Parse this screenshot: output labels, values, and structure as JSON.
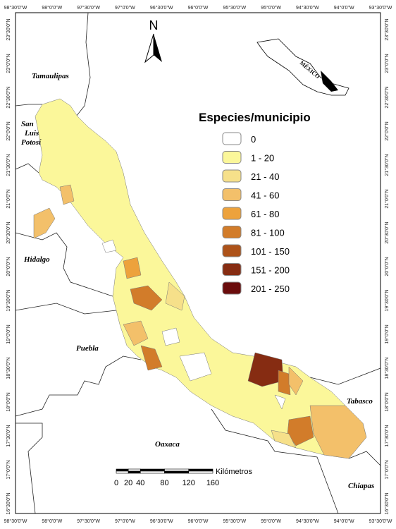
{
  "north_label": "N",
  "inset_label": "MÉXICO",
  "top_lon_labels": [
    "98°30'0\"W",
    "98°0'0\"W",
    "97°30'0\"W",
    "97°0'0\"W",
    "96°30'0\"W",
    "96°0'0\"W",
    "95°30'0\"W",
    "95°0'0\"W",
    "94°30'0\"W",
    "94°0'0\"W",
    "93°30'0\"W"
  ],
  "bottom_lon_labels": [
    "98°30'0\"W",
    "98°0'0\"W",
    "97°30'0\"W",
    "97°0'0\"W",
    "96°30'0\"W",
    "96°0'0\"W",
    "95°30'0\"W",
    "95°0'0\"W",
    "94°30'0\"W",
    "94°0'0\"W",
    "93°30'0\"W"
  ],
  "left_lat_labels": [
    "23°30'0\"N",
    "23°0'0\"N",
    "22°30'0\"N",
    "22°0'0\"N",
    "21°30'0\"N",
    "21°0'0\"N",
    "20°30'0\"N",
    "20°0'0\"N",
    "19°30'0\"N",
    "19°0'0\"N",
    "18°30'0\"N",
    "18°0'0\"N",
    "17°30'0\"N",
    "17°0'0\"N",
    "16°30'0\"N"
  ],
  "right_lat_labels": [
    "23°30'0\"N",
    "23°0'0\"N",
    "22°30'0\"N",
    "22°0'0\"N",
    "21°30'0\"N",
    "21°0'0\"N",
    "20°30'0\"N",
    "20°0'0\"N",
    "19°30'0\"N",
    "19°0'0\"N",
    "18°30'0\"N",
    "18°0'0\"N",
    "17°30'0\"N",
    "17°0'0\"N",
    "16°30'0\"N"
  ],
  "states": [
    "Tamaulipas",
    "San",
    "Luis",
    "Potosí",
    "Hidalgo",
    "Puebla",
    "Oaxaca",
    "Tabasco",
    "Chiapas"
  ],
  "legend": {
    "title": "Especies/municipio",
    "items": [
      {
        "label": "0",
        "color": "#ffffff"
      },
      {
        "label": "1 - 20",
        "color": "#fbf79a"
      },
      {
        "label": "21 - 40",
        "color": "#f6e08a"
      },
      {
        "label": "41 - 60",
        "color": "#f3c06a"
      },
      {
        "label": "61 - 80",
        "color": "#eda23c"
      },
      {
        "label": "81 - 100",
        "color": "#d27c2a"
      },
      {
        "label": "101 - 150",
        "color": "#ad5219"
      },
      {
        "label": "151 - 200",
        "color": "#862c12"
      },
      {
        "label": "201 - 250",
        "color": "#6a0c0c"
      }
    ]
  },
  "scale": {
    "unit": "Kilómetros",
    "ticks": [
      0,
      20,
      40,
      80,
      120,
      160
    ]
  }
}
